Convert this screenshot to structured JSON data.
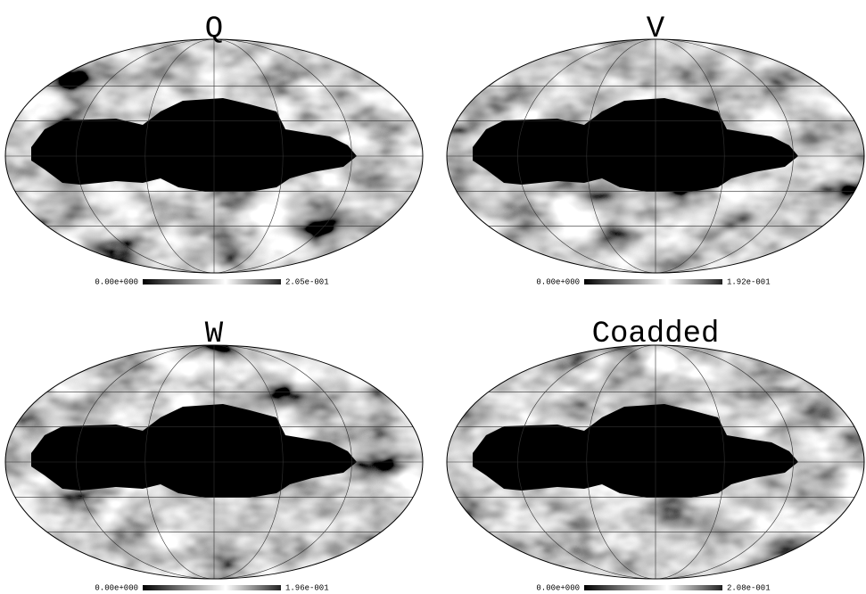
{
  "panels": [
    {
      "title": "Q",
      "colorbar_min": "0.00e+000",
      "colorbar_max": "2.05e-001"
    },
    {
      "title": "V",
      "colorbar_min": "0.00e+000",
      "colorbar_max": "1.92e-001"
    },
    {
      "title": "W",
      "colorbar_min": "0.00e+000",
      "colorbar_max": "1.96e-001"
    },
    {
      "title": "Coadded",
      "colorbar_min": "0.00e+000",
      "colorbar_max": "2.08e-001"
    }
  ]
}
